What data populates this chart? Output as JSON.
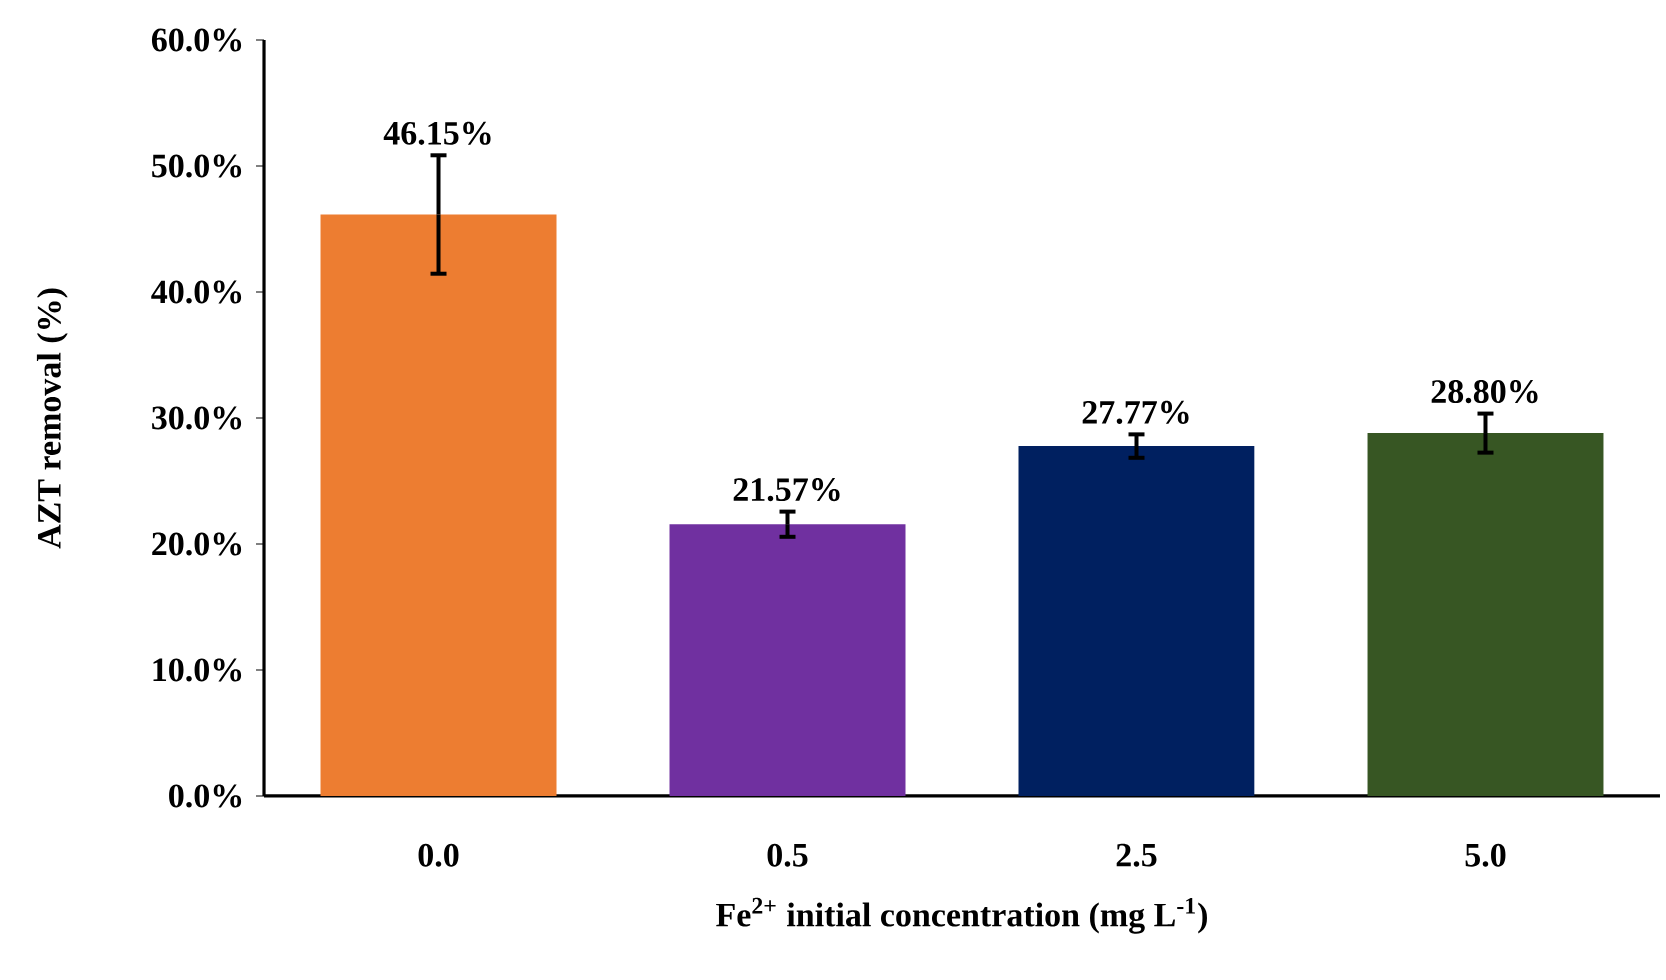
{
  "chart_data": {
    "type": "bar",
    "xlabel": "Fe$^{2+}$ initial concentration (mg L$^{-1}$)",
    "ylabel": "AZT removal (%)",
    "categories": [
      "0.0",
      "0.5",
      "2.5",
      "5.0"
    ],
    "values": [
      46.15,
      21.57,
      27.77,
      28.8
    ],
    "colors": [
      "#ed7d31",
      "#7030a0",
      "#002060",
      "#375623"
    ],
    "errors": [
      4.7,
      1.0,
      0.93,
      1.55
    ],
    "value_labels": [
      "46.15%",
      "21.57%",
      "27.77%",
      "28.80%"
    ],
    "ylim": [
      0,
      60
    ],
    "yticks": [
      {
        "value": 0,
        "label": "0.0%"
      },
      {
        "value": 10,
        "label": "10.0%"
      },
      {
        "value": 20,
        "label": "20.0%"
      },
      {
        "value": 30,
        "label": "30.0%"
      },
      {
        "value": 40,
        "label": "40.0%"
      },
      {
        "value": 50,
        "label": "50.0%"
      },
      {
        "value": 60,
        "label": "60.0%"
      }
    ],
    "grid": false
  }
}
